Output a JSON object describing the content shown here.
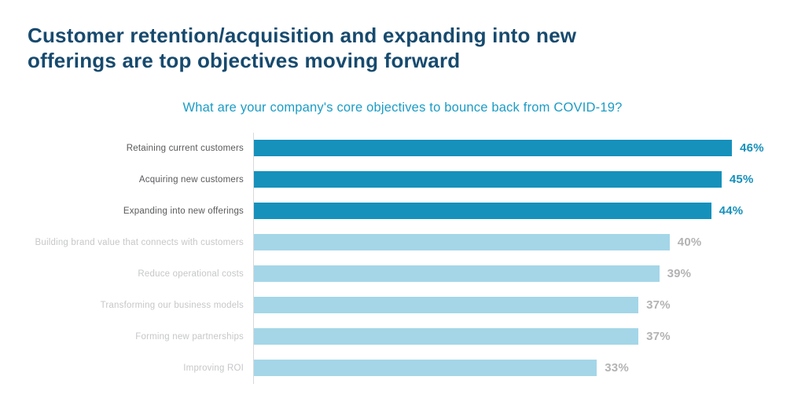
{
  "page": {
    "title_line1": "Customer retention/acquisition and expanding into new",
    "title_line2": "offerings are top objectives moving forward"
  },
  "chart_data": {
    "type": "bar",
    "orientation": "horizontal",
    "title": "What are your company's core objectives to bounce back from COVID-19?",
    "categories": [
      "Retaining current customers",
      "Acquiring new customers",
      "Expanding into new offerings",
      "Building brand value that connects with customers",
      "Reduce operational costs",
      "Transforming our business models",
      "Forming new partnerships",
      "Improving ROI"
    ],
    "values": [
      46,
      45,
      44,
      40,
      39,
      37,
      37,
      33
    ],
    "value_suffix": "%",
    "xlim": [
      0,
      50
    ],
    "highlight_count": 3,
    "grid": false,
    "legend": "none",
    "colors": {
      "bar_primary": "#1591bc",
      "bar_secondary": "#a4d6e8",
      "title": "#174a6e",
      "chart_title": "#1b9cc6",
      "label_primary": "#58595b",
      "label_secondary": "#c6c7c8",
      "value_primary": "#1591bc",
      "value_secondary": "#b3b3b3",
      "axis": "#d9d9d9"
    }
  }
}
